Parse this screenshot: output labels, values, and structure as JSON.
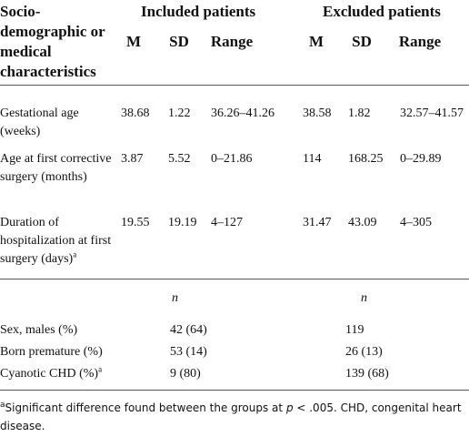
{
  "table": {
    "header": {
      "label": "Socio-demographic or medical characteristics",
      "groups": [
        "Included patients",
        "Excluded patients"
      ],
      "columns": [
        "M",
        "SD",
        "Range",
        "M",
        "SD",
        "Range"
      ]
    },
    "rows": [
      {
        "label": "Gestational age (weeks)",
        "cells": [
          "38.68",
          "1.22",
          "36.26–41.26",
          "38.58",
          "1.82",
          "32.57–41.57"
        ]
      },
      {
        "label": "Age at first corrective surgery (months)",
        "cells": [
          "3.87",
          "5.52",
          "0–21.86",
          "114",
          "168.25",
          "0–29.89"
        ]
      },
      {
        "label": "Duration of hospitalization at first surgery (days)",
        "note": "a",
        "cells": [
          "19.55",
          "19.19",
          "4–127",
          "31.47",
          "43.09",
          "4–305"
        ]
      }
    ],
    "count_header": [
      "n",
      "n"
    ],
    "count_rows": [
      {
        "label": "Sex, males (%)",
        "cells": [
          "42 (64)",
          "119"
        ]
      },
      {
        "label": "Born premature (%)",
        "cells": [
          "53 (14)",
          "26 (13)"
        ]
      },
      {
        "label": "Cyanotic CHD (%)",
        "note": "a",
        "cells": [
          "9 (80)",
          "139 (68)"
        ]
      }
    ]
  },
  "footnote": {
    "note": "a",
    "text": "Significant difference found between the groups at ",
    "italic": "p",
    "rest": " < .005. CHD, congenital heart disease."
  }
}
